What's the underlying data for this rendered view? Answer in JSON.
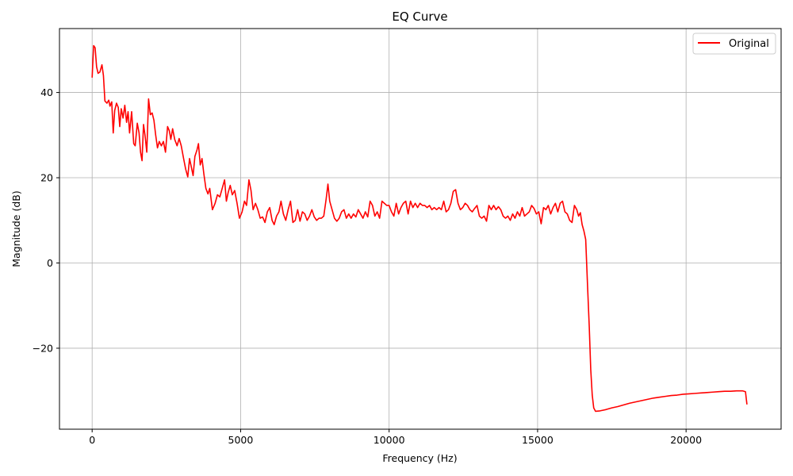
{
  "chart_data": {
    "type": "line",
    "title": "EQ Curve",
    "xlabel": "Frequency (Hz)",
    "ylabel": "Magnitude (dB)",
    "xlim": [
      -1100,
      23200
    ],
    "ylim": [
      -39,
      55
    ],
    "xticks": [
      0,
      5000,
      10000,
      15000,
      20000
    ],
    "yticks": [
      -20,
      0,
      20,
      40
    ],
    "ytick_labels": [
      "−20",
      "0",
      "20",
      "40"
    ],
    "grid": true,
    "legend_position": "top-right",
    "series": [
      {
        "name": "Original",
        "color": "#ff0000",
        "points": [
          [
            0,
            43.5
          ],
          [
            50,
            51
          ],
          [
            100,
            50.5
          ],
          [
            150,
            46
          ],
          [
            200,
            44.5
          ],
          [
            260,
            44.8
          ],
          [
            330,
            46.5
          ],
          [
            380,
            44
          ],
          [
            430,
            38
          ],
          [
            500,
            37.5
          ],
          [
            560,
            38.2
          ],
          [
            600,
            36.8
          ],
          [
            660,
            37.8
          ],
          [
            710,
            30.5
          ],
          [
            760,
            35.8
          ],
          [
            820,
            37.5
          ],
          [
            880,
            36.5
          ],
          [
            930,
            32
          ],
          [
            980,
            36.2
          ],
          [
            1040,
            34
          ],
          [
            1100,
            37
          ],
          [
            1160,
            33
          ],
          [
            1210,
            35.5
          ],
          [
            1260,
            30.5
          ],
          [
            1330,
            35.5
          ],
          [
            1400,
            28
          ],
          [
            1450,
            27.5
          ],
          [
            1520,
            32.8
          ],
          [
            1580,
            30.5
          ],
          [
            1630,
            26
          ],
          [
            1680,
            24
          ],
          [
            1730,
            32.5
          ],
          [
            1780,
            30
          ],
          [
            1840,
            26
          ],
          [
            1900,
            38.5
          ],
          [
            1960,
            34.8
          ],
          [
            2020,
            35.2
          ],
          [
            2080,
            33.5
          ],
          [
            2140,
            30
          ],
          [
            2200,
            27
          ],
          [
            2260,
            28.5
          ],
          [
            2330,
            27.5
          ],
          [
            2400,
            28.5
          ],
          [
            2470,
            26
          ],
          [
            2540,
            32
          ],
          [
            2600,
            31
          ],
          [
            2650,
            29
          ],
          [
            2710,
            31.5
          ],
          [
            2780,
            29
          ],
          [
            2860,
            27.5
          ],
          [
            2930,
            29.2
          ],
          [
            3000,
            27.5
          ],
          [
            3080,
            24.5
          ],
          [
            3150,
            22
          ],
          [
            3220,
            20.2
          ],
          [
            3280,
            24.5
          ],
          [
            3340,
            22.5
          ],
          [
            3400,
            20.5
          ],
          [
            3460,
            25
          ],
          [
            3530,
            26.5
          ],
          [
            3580,
            28
          ],
          [
            3640,
            23
          ],
          [
            3700,
            24.5
          ],
          [
            3760,
            21
          ],
          [
            3830,
            17.5
          ],
          [
            3900,
            16.2
          ],
          [
            3960,
            17.5
          ],
          [
            4050,
            12.5
          ],
          [
            4140,
            14
          ],
          [
            4220,
            16
          ],
          [
            4300,
            15.5
          ],
          [
            4380,
            17.5
          ],
          [
            4460,
            19.5
          ],
          [
            4520,
            14.5
          ],
          [
            4580,
            16.5
          ],
          [
            4650,
            18.2
          ],
          [
            4720,
            16
          ],
          [
            4800,
            17
          ],
          [
            4880,
            14
          ],
          [
            4960,
            10.5
          ],
          [
            5050,
            12
          ],
          [
            5130,
            14.5
          ],
          [
            5200,
            13.5
          ],
          [
            5280,
            19.5
          ],
          [
            5350,
            17
          ],
          [
            5420,
            12.5
          ],
          [
            5500,
            14
          ],
          [
            5580,
            12.5
          ],
          [
            5660,
            10.5
          ],
          [
            5740,
            10.8
          ],
          [
            5820,
            9.5
          ],
          [
            5900,
            12
          ],
          [
            5980,
            13
          ],
          [
            6060,
            10
          ],
          [
            6130,
            9
          ],
          [
            6210,
            11
          ],
          [
            6290,
            12
          ],
          [
            6360,
            14.5
          ],
          [
            6440,
            11.5
          ],
          [
            6520,
            10
          ],
          [
            6600,
            12.5
          ],
          [
            6680,
            14.5
          ],
          [
            6760,
            9.5
          ],
          [
            6840,
            10
          ],
          [
            6920,
            12.5
          ],
          [
            7000,
            9.8
          ],
          [
            7080,
            12
          ],
          [
            7160,
            11.5
          ],
          [
            7240,
            10
          ],
          [
            7320,
            11
          ],
          [
            7400,
            12.5
          ],
          [
            7480,
            10.8
          ],
          [
            7560,
            10
          ],
          [
            7640,
            10.5
          ],
          [
            7720,
            10.5
          ],
          [
            7800,
            11
          ],
          [
            7880,
            15
          ],
          [
            7940,
            18.5
          ],
          [
            8000,
            14.5
          ],
          [
            8080,
            12.5
          ],
          [
            8160,
            10.5
          ],
          [
            8240,
            9.8
          ],
          [
            8320,
            10.5
          ],
          [
            8400,
            12
          ],
          [
            8480,
            12.5
          ],
          [
            8560,
            10.5
          ],
          [
            8640,
            11.5
          ],
          [
            8720,
            10.5
          ],
          [
            8800,
            11.5
          ],
          [
            8880,
            10.8
          ],
          [
            8960,
            12.5
          ],
          [
            9040,
            11.5
          ],
          [
            9120,
            10.5
          ],
          [
            9200,
            12
          ],
          [
            9280,
            10.8
          ],
          [
            9360,
            14.5
          ],
          [
            9440,
            13.5
          ],
          [
            9520,
            11
          ],
          [
            9600,
            12
          ],
          [
            9680,
            10.5
          ],
          [
            9760,
            14.5
          ],
          [
            9840,
            14
          ],
          [
            9920,
            13.5
          ],
          [
            10000,
            13.5
          ],
          [
            10080,
            12
          ],
          [
            10160,
            11
          ],
          [
            10240,
            14
          ],
          [
            10320,
            11.5
          ],
          [
            10400,
            13
          ],
          [
            10480,
            14
          ],
          [
            10560,
            14.5
          ],
          [
            10640,
            11.5
          ],
          [
            10720,
            14.5
          ],
          [
            10800,
            13
          ],
          [
            10880,
            14
          ],
          [
            10960,
            13
          ],
          [
            11040,
            14
          ],
          [
            11120,
            13.5
          ],
          [
            11200,
            13.5
          ],
          [
            11280,
            13
          ],
          [
            11360,
            13.5
          ],
          [
            11440,
            12.5
          ],
          [
            11520,
            13
          ],
          [
            11600,
            12.5
          ],
          [
            11680,
            13
          ],
          [
            11760,
            12.5
          ],
          [
            11840,
            14.5
          ],
          [
            11920,
            12
          ],
          [
            12000,
            12.5
          ],
          [
            12080,
            14
          ],
          [
            12160,
            16.8
          ],
          [
            12240,
            17.2
          ],
          [
            12320,
            14
          ],
          [
            12400,
            12.5
          ],
          [
            12480,
            13
          ],
          [
            12560,
            14
          ],
          [
            12640,
            13.5
          ],
          [
            12720,
            12.5
          ],
          [
            12800,
            12
          ],
          [
            12880,
            12.8
          ],
          [
            12960,
            13.5
          ],
          [
            13040,
            11
          ],
          [
            13120,
            10.5
          ],
          [
            13200,
            11
          ],
          [
            13280,
            9.8
          ],
          [
            13360,
            13.5
          ],
          [
            13440,
            12.5
          ],
          [
            13520,
            13.5
          ],
          [
            13600,
            12.5
          ],
          [
            13680,
            13.2
          ],
          [
            13760,
            12.5
          ],
          [
            13840,
            11
          ],
          [
            13920,
            10.5
          ],
          [
            14000,
            11
          ],
          [
            14080,
            10
          ],
          [
            14160,
            11.5
          ],
          [
            14240,
            10.5
          ],
          [
            14320,
            12
          ],
          [
            14400,
            11
          ],
          [
            14480,
            13
          ],
          [
            14560,
            11
          ],
          [
            14640,
            11.5
          ],
          [
            14720,
            12
          ],
          [
            14800,
            13.5
          ],
          [
            14880,
            12.8
          ],
          [
            14960,
            11.5
          ],
          [
            15040,
            12
          ],
          [
            15120,
            9.2
          ],
          [
            15200,
            13
          ],
          [
            15280,
            12.5
          ],
          [
            15360,
            13.5
          ],
          [
            15440,
            11.5
          ],
          [
            15520,
            13
          ],
          [
            15600,
            14
          ],
          [
            15680,
            12
          ],
          [
            15760,
            14
          ],
          [
            15840,
            14.5
          ],
          [
            15920,
            12
          ],
          [
            16000,
            11.5
          ],
          [
            16080,
            10
          ],
          [
            16160,
            9.5
          ],
          [
            16240,
            13.5
          ],
          [
            16320,
            12.5
          ],
          [
            16380,
            11
          ],
          [
            16440,
            11.8
          ],
          [
            16500,
            9
          ],
          [
            16560,
            7.5
          ],
          [
            16620,
            5.5
          ],
          [
            16680,
            -5
          ],
          [
            16740,
            -15
          ],
          [
            16790,
            -25
          ],
          [
            16840,
            -31
          ],
          [
            16890,
            -34
          ],
          [
            16950,
            -34.8
          ],
          [
            17100,
            -34.7
          ],
          [
            17300,
            -34.4
          ],
          [
            17500,
            -34
          ],
          [
            17700,
            -33.7
          ],
          [
            17900,
            -33.3
          ],
          [
            18100,
            -32.9
          ],
          [
            18300,
            -32.6
          ],
          [
            18500,
            -32.3
          ],
          [
            18700,
            -32
          ],
          [
            18900,
            -31.7
          ],
          [
            19100,
            -31.5
          ],
          [
            19300,
            -31.3
          ],
          [
            19500,
            -31.1
          ],
          [
            19700,
            -31
          ],
          [
            19900,
            -30.8
          ],
          [
            20100,
            -30.7
          ],
          [
            20300,
            -30.6
          ],
          [
            20500,
            -30.5
          ],
          [
            20700,
            -30.4
          ],
          [
            20900,
            -30.3
          ],
          [
            21100,
            -30.2
          ],
          [
            21300,
            -30.1
          ],
          [
            21500,
            -30.1
          ],
          [
            21700,
            -30
          ],
          [
            21900,
            -30
          ],
          [
            22000,
            -30.2
          ],
          [
            22050,
            -33.2
          ]
        ]
      }
    ]
  }
}
